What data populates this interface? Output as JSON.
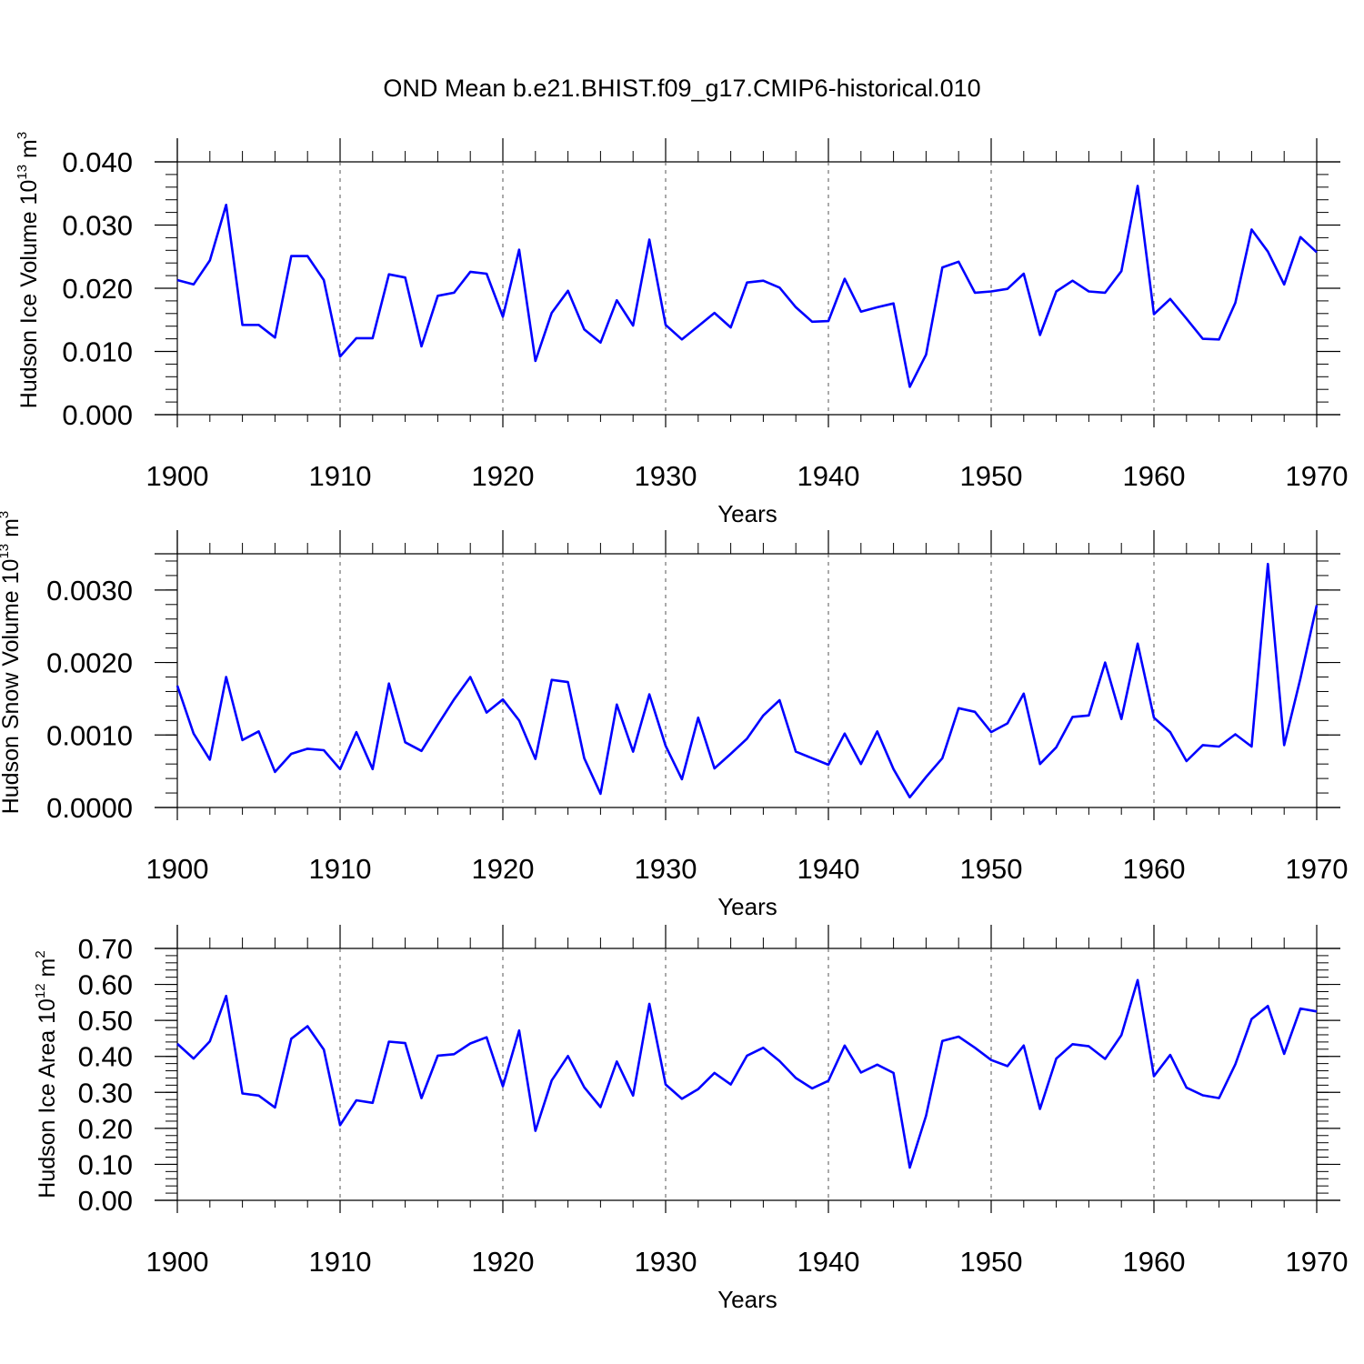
{
  "title": "OND Mean b.e21.BHIST.f09_g17.CMIP6-historical.010",
  "colors": {
    "series": "#0000ff",
    "axis": "#000000",
    "grid": "#555555"
  },
  "chart_data": [
    {
      "type": "line",
      "name": "ice-volume",
      "ylabel": {
        "main": "Hudson Ice Volume 10",
        "exp": "13",
        "unit": " m",
        "unit_exp": "3"
      },
      "xlabel": "Years",
      "xlim": [
        1900,
        1970
      ],
      "ylim": [
        0.0,
        0.04
      ],
      "yticks": [
        0.0,
        0.01,
        0.02,
        0.03,
        0.04
      ],
      "ytick_labels": [
        "0.000",
        "0.010",
        "0.020",
        "0.030",
        "0.040"
      ],
      "xticks": [
        1900,
        1910,
        1920,
        1930,
        1940,
        1950,
        1960,
        1970
      ],
      "xtick_labels": [
        "1900",
        "1910",
        "1920",
        "1930",
        "1940",
        "1950",
        "1960",
        "1970"
      ],
      "series": [
        {
          "name": "Hudson Ice Volume",
          "x_start": 1900,
          "values": [
            0.0213,
            0.0206,
            0.0244,
            0.0332,
            0.0142,
            0.0142,
            0.0122,
            0.0251,
            0.0251,
            0.0213,
            0.0092,
            0.0121,
            0.0121,
            0.0222,
            0.0217,
            0.0108,
            0.0188,
            0.0193,
            0.0226,
            0.0223,
            0.0155,
            0.0261,
            0.0085,
            0.0161,
            0.0196,
            0.0135,
            0.0114,
            0.0181,
            0.0141,
            0.0277,
            0.0142,
            0.0119,
            0.014,
            0.0161,
            0.0138,
            0.0209,
            0.0212,
            0.0201,
            0.017,
            0.0147,
            0.0148,
            0.0215,
            0.0163,
            0.017,
            0.0176,
            0.0044,
            0.0095,
            0.0233,
            0.0242,
            0.0193,
            0.0195,
            0.0199,
            0.0223,
            0.0126,
            0.0195,
            0.0212,
            0.0195,
            0.0193,
            0.0227,
            0.0362,
            0.0159,
            0.0183,
            0.0152,
            0.012,
            0.0119,
            0.0177,
            0.0293,
            0.0258,
            0.0206,
            0.0281,
            0.0257
          ]
        }
      ]
    },
    {
      "type": "line",
      "name": "snow-volume",
      "ylabel": {
        "main": "Hudson Snow Volume 10",
        "exp": "13",
        "unit": " m",
        "unit_exp": "3"
      },
      "xlabel": "Years",
      "xlim": [
        1900,
        1970
      ],
      "ylim": [
        0.0,
        0.0035
      ],
      "yticks": [
        0.0,
        0.001,
        0.002,
        0.003
      ],
      "ytick_labels": [
        "0.0000",
        "0.0010",
        "0.0020",
        "0.0030"
      ],
      "xticks": [
        1900,
        1910,
        1920,
        1930,
        1940,
        1950,
        1960,
        1970
      ],
      "xtick_labels": [
        "1900",
        "1910",
        "1920",
        "1930",
        "1940",
        "1950",
        "1960",
        "1970"
      ],
      "series": [
        {
          "name": "Hudson Snow Volume",
          "x_start": 1900,
          "values": [
            0.00168,
            0.00102,
            0.00066,
            0.0018,
            0.00093,
            0.00105,
            0.00049,
            0.00074,
            0.00081,
            0.00079,
            0.00053,
            0.00104,
            0.00053,
            0.00171,
            0.0009,
            0.00078,
            0.00114,
            0.00149,
            0.0018,
            0.00131,
            0.00149,
            0.0012,
            0.00067,
            0.00176,
            0.00173,
            0.00068,
            0.00019,
            0.00142,
            0.00077,
            0.00156,
            0.00085,
            0.00039,
            0.00124,
            0.00054,
            0.00074,
            0.00095,
            0.00127,
            0.00148,
            0.00077,
            0.00068,
            0.00059,
            0.00102,
            0.0006,
            0.00105,
            0.00053,
            0.00014,
            0.00042,
            0.00068,
            0.00137,
            0.00132,
            0.00104,
            0.00116,
            0.00157,
            0.0006,
            0.00083,
            0.00125,
            0.00127,
            0.002,
            0.00122,
            0.00226,
            0.00124,
            0.00104,
            0.00064,
            0.00086,
            0.00084,
            0.00101,
            0.00084,
            0.00336,
            0.00086,
            0.00178,
            0.00279
          ]
        }
      ]
    },
    {
      "type": "line",
      "name": "ice-area",
      "ylabel": {
        "main": "Hudson Ice Area 10",
        "exp": "12",
        "unit": " m",
        "unit_exp": "2"
      },
      "xlabel": "Years",
      "xlim": [
        1900,
        1970
      ],
      "ylim": [
        0.0,
        0.7
      ],
      "yticks": [
        0.0,
        0.1,
        0.2,
        0.3,
        0.4,
        0.5,
        0.6,
        0.7
      ],
      "ytick_labels": [
        "0.00",
        "0.10",
        "0.20",
        "0.30",
        "0.40",
        "0.50",
        "0.60",
        "0.70"
      ],
      "xticks": [
        1900,
        1910,
        1920,
        1930,
        1940,
        1950,
        1960,
        1970
      ],
      "xtick_labels": [
        "1900",
        "1910",
        "1920",
        "1930",
        "1940",
        "1950",
        "1960",
        "1970"
      ],
      "series": [
        {
          "name": "Hudson Ice Area",
          "x_start": 1900,
          "values": [
            0.435,
            0.394,
            0.442,
            0.568,
            0.297,
            0.291,
            0.258,
            0.449,
            0.484,
            0.419,
            0.209,
            0.278,
            0.271,
            0.441,
            0.437,
            0.284,
            0.402,
            0.406,
            0.436,
            0.453,
            0.317,
            0.472,
            0.193,
            0.333,
            0.401,
            0.314,
            0.259,
            0.386,
            0.291,
            0.546,
            0.322,
            0.282,
            0.309,
            0.354,
            0.322,
            0.402,
            0.424,
            0.387,
            0.34,
            0.311,
            0.332,
            0.43,
            0.355,
            0.377,
            0.354,
            0.091,
            0.235,
            0.443,
            0.455,
            0.424,
            0.39,
            0.373,
            0.43,
            0.254,
            0.394,
            0.434,
            0.428,
            0.393,
            0.459,
            0.612,
            0.345,
            0.404,
            0.313,
            0.292,
            0.284,
            0.378,
            0.504,
            0.54,
            0.407,
            0.533,
            0.525
          ]
        }
      ]
    }
  ]
}
